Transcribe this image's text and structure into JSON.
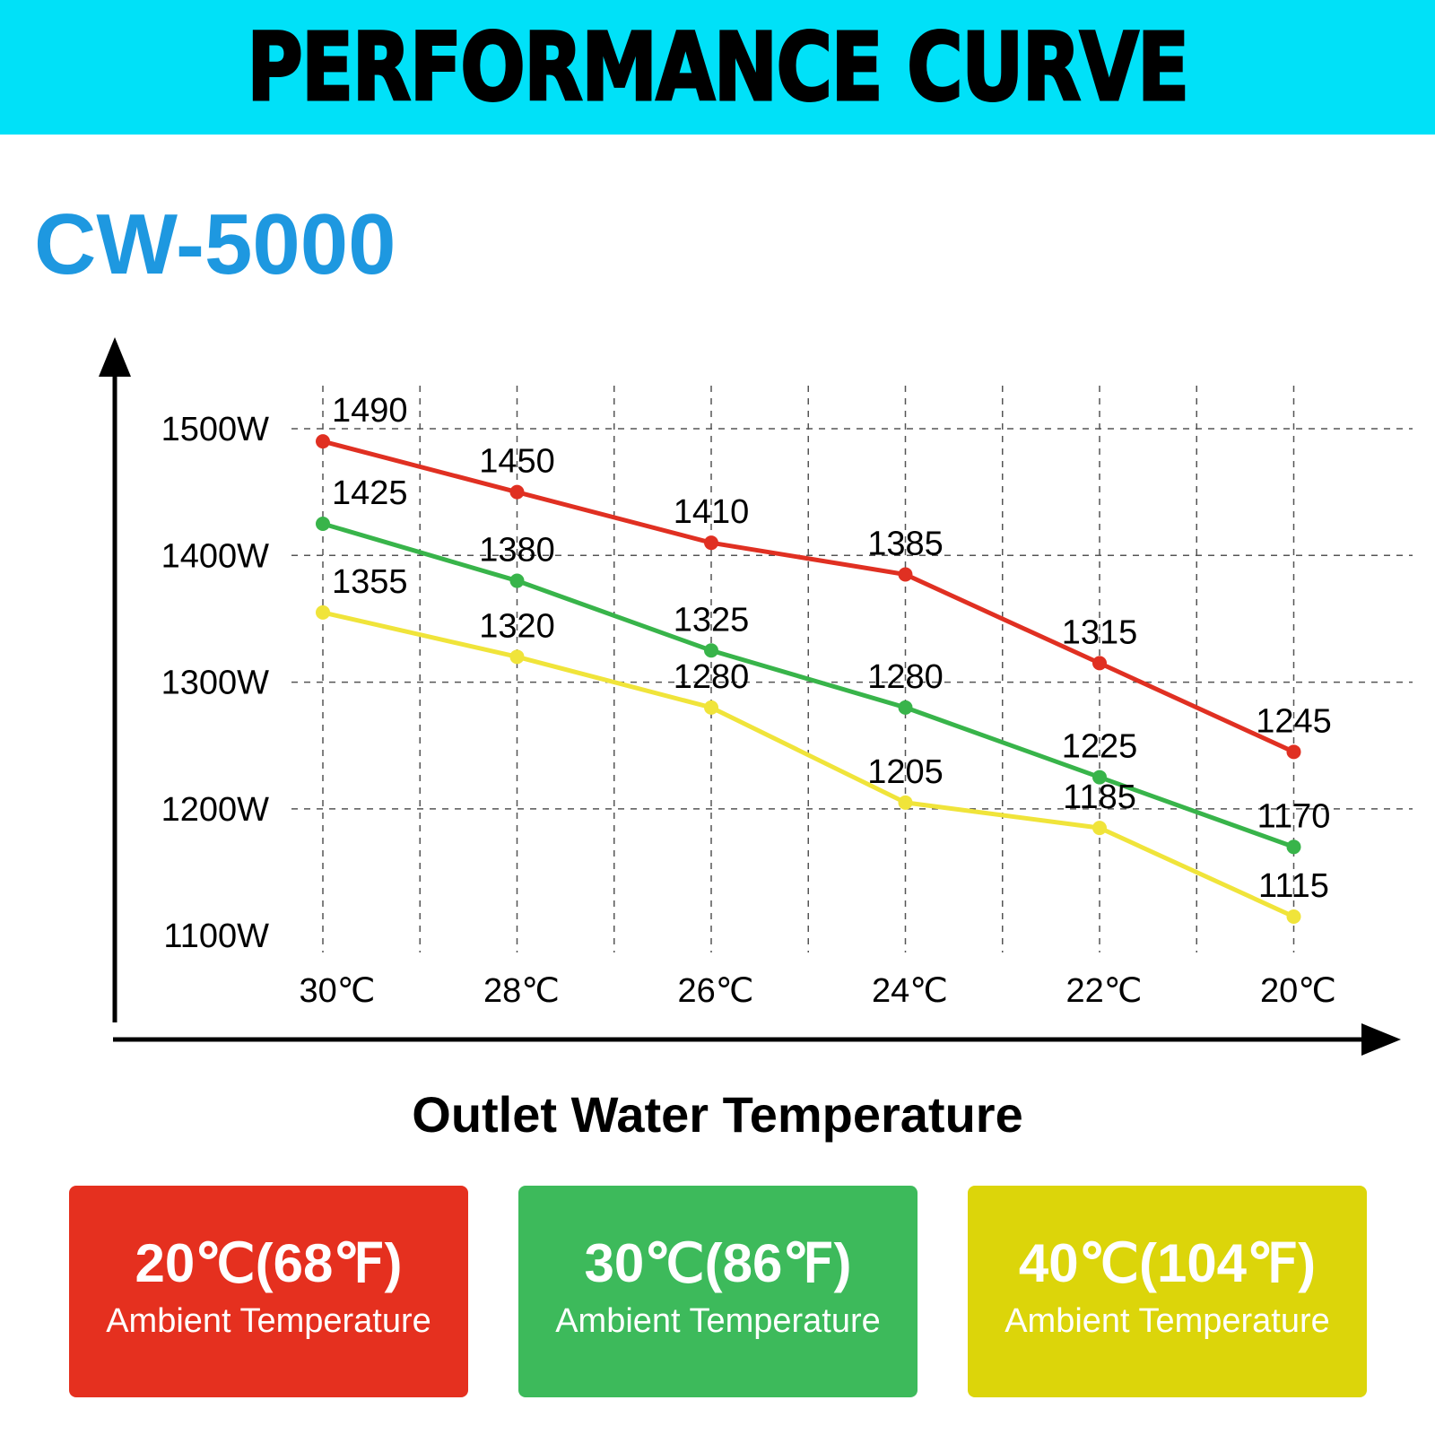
{
  "header": {
    "title": "PERFORMANCE CURVE"
  },
  "model": "CW-5000",
  "chart_data": {
    "type": "line",
    "title": "PERFORMANCE CURVE",
    "subtitle": "CW-5000",
    "xlabel": "Outlet Water Temperature",
    "ylabel": "",
    "x": [
      "30℃",
      "28℃",
      "26℃",
      "24℃",
      "22℃",
      "20℃"
    ],
    "y_ticks": [
      "1500W",
      "1400W",
      "1300W",
      "1200W",
      "1100W"
    ],
    "y_tick_values": [
      1500,
      1400,
      1300,
      1200,
      1100
    ],
    "ylim": [
      1100,
      1500
    ],
    "grid": true,
    "legend_placement": "bottom",
    "series": [
      {
        "name": "20℃(68℉) Ambient Temperature",
        "color": "#E03022",
        "values": [
          1490,
          1450,
          1410,
          1385,
          1315,
          1245
        ]
      },
      {
        "name": "30℃(86℉) Ambient Temperature",
        "color": "#38B44A",
        "values": [
          1425,
          1380,
          1325,
          1280,
          1225,
          1170
        ]
      },
      {
        "name": "40℃(104℉) Ambient Temperature",
        "color": "#F0E43A",
        "values": [
          1355,
          1320,
          1280,
          1205,
          1185,
          1115
        ]
      }
    ]
  },
  "legend": [
    {
      "temp": "20℃(68℉)",
      "label": "Ambient Temperature",
      "color": "#E5301F"
    },
    {
      "temp": "30℃(86℉)",
      "label": "Ambient Temperature",
      "color": "#3DBA5B"
    },
    {
      "temp": "40℃(104℉)",
      "label": "Ambient Temperature",
      "color": "#DCD50A"
    }
  ]
}
